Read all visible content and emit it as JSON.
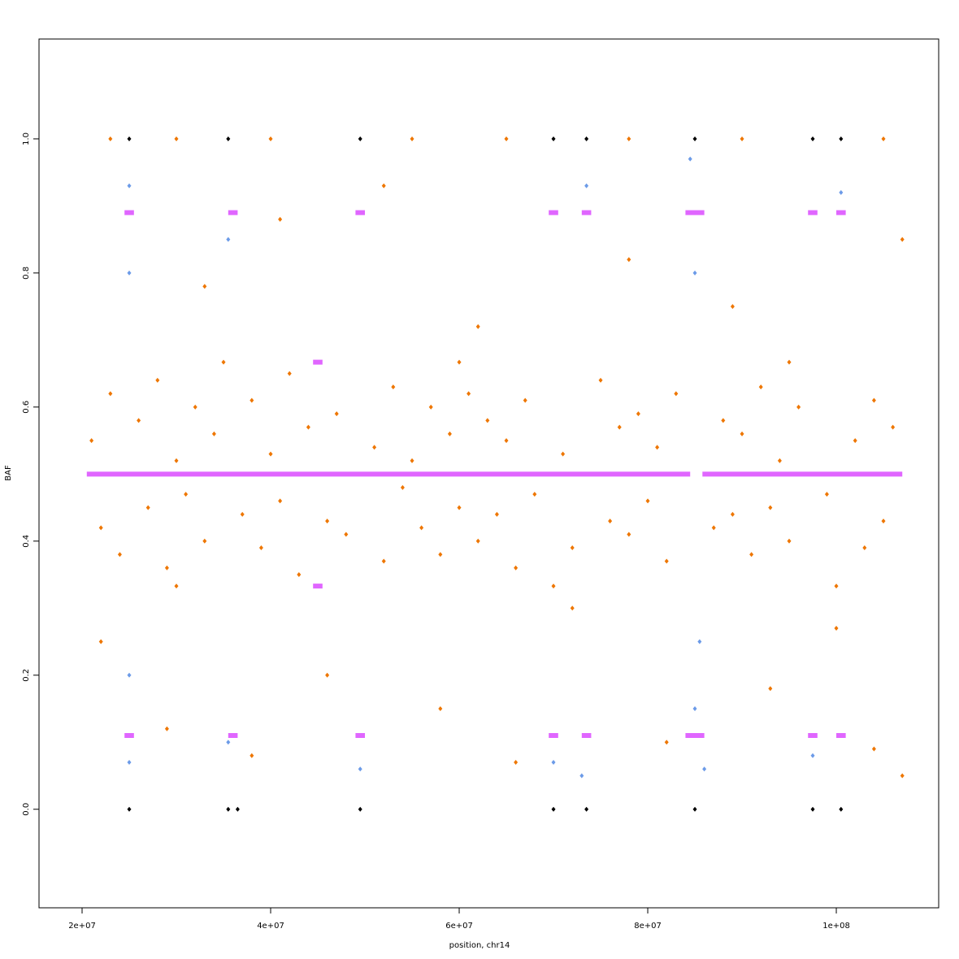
{
  "chart_data": {
    "type": "scatter",
    "xlabel": "position, chr14",
    "ylabel": "BAF",
    "xlim": [
      15430000,
      110860000
    ],
    "ylim": [
      -0.147,
      1.149
    ],
    "xticks": [
      {
        "value": 20000000,
        "label": "2e+07"
      },
      {
        "value": 40000000,
        "label": "4e+07"
      },
      {
        "value": 60000000,
        "label": "6e+07"
      },
      {
        "value": 80000000,
        "label": "8e+07"
      },
      {
        "value": 100000000,
        "label": "1e+08"
      }
    ],
    "yticks": [
      {
        "value": 0,
        "label": "0.0"
      },
      0.2,
      0.4,
      0.6,
      0.8,
      {
        "value": 1,
        "label": "1.0"
      }
    ],
    "series": [
      {
        "mode": "points",
        "color": "#ee7600",
        "x": [
          21000000.0,
          22000000.0,
          23000000.0,
          24000000.0,
          26000000.0,
          27000000.0,
          28000000.0,
          29000000.0,
          30000000.0,
          31000000.0,
          32000000.0,
          33000000.0,
          34000000.0,
          37000000.0,
          38000000.0,
          39000000.0,
          40000000.0,
          41000000.0,
          42000000.0,
          43000000.0,
          44000000.0,
          46000000.0,
          47000000.0,
          48000000.0,
          51000000.0,
          52000000.0,
          53000000.0,
          54000000.0,
          55000000.0,
          56000000.0,
          57000000.0,
          58000000.0,
          59000000.0,
          60000000.0,
          61000000.0,
          62000000.0,
          63000000.0,
          64000000.0,
          65000000.0,
          66000000.0,
          67000000.0,
          68000000.0,
          71000000.0,
          72000000.0,
          75000000.0,
          76000000.0,
          77000000.0,
          78000000.0,
          79000000.0,
          80000000.0,
          81000000.0,
          82000000.0,
          83000000.0,
          87000000.0,
          88000000.0,
          89000000.0,
          90000000.0,
          91000000.0,
          92000000.0,
          93000000.0,
          94000000.0,
          95000000.0,
          96000000.0,
          99000000.0,
          102000000.0,
          103000000.0,
          104000000.0,
          105000000.0,
          106000000.0,
          22000000.0,
          29000000.0,
          33000000.0,
          38000000.0,
          41000000.0,
          46000000.0,
          52000000.0,
          58000000.0,
          62000000.0,
          66000000.0,
          72000000.0,
          78000000.0,
          82000000.0,
          89000000.0,
          93000000.0,
          100000000.0,
          104000000.0,
          107000000.0,
          107000000.0,
          23000000.0,
          30000000.0,
          40000000.0,
          55000000.0,
          65000000.0,
          78000000.0,
          90000000.0,
          105000000.0,
          35000000.0,
          60000000.0,
          95000000.0,
          30000000.0,
          70000000.0,
          100000000.0
        ],
        "values": [
          0.55,
          0.42,
          0.62,
          0.38,
          0.58,
          0.45,
          0.64,
          0.36,
          0.52,
          0.47,
          0.6,
          0.4,
          0.56,
          0.44,
          0.61,
          0.39,
          0.53,
          0.46,
          0.65,
          0.35,
          0.57,
          0.43,
          0.59,
          0.41,
          0.54,
          0.37,
          0.63,
          0.48,
          0.52,
          0.42,
          0.6,
          0.38,
          0.56,
          0.45,
          0.62,
          0.4,
          0.58,
          0.44,
          0.55,
          0.36,
          0.61,
          0.47,
          0.53,
          0.39,
          0.64,
          0.43,
          0.57,
          0.41,
          0.59,
          0.46,
          0.54,
          0.37,
          0.62,
          0.42,
          0.58,
          0.44,
          0.56,
          0.38,
          0.63,
          0.45,
          0.52,
          0.4,
          0.6,
          0.47,
          0.55,
          0.39,
          0.61,
          0.43,
          0.57,
          0.25,
          0.12,
          0.78,
          0.08,
          0.88,
          0.2,
          0.93,
          0.15,
          0.72,
          0.07,
          0.3,
          0.82,
          0.1,
          0.75,
          0.18,
          0.27,
          0.09,
          0.05,
          0.85,
          1,
          1,
          1,
          1,
          1,
          1,
          1,
          1,
          0.667,
          0.667,
          0.667,
          0.333,
          0.333,
          0.333
        ]
      },
      {
        "mode": "points",
        "color": "#6c9be8",
        "x": [
          25000000.0,
          25000000.0,
          25000000.0,
          25000000.0,
          35500000.0,
          35500000.0,
          49500000.0,
          70000000.0,
          73500000.0,
          73000000.0,
          84500000.0,
          85000000.0,
          85500000.0,
          85000000.0,
          86000000.0,
          97500000.0,
          100500000.0
        ],
        "values": [
          0.93,
          0.8,
          0.2,
          0.07,
          0.85,
          0.1,
          0.06,
          0.07,
          0.93,
          0.05,
          0.97,
          0.8,
          0.25,
          0.15,
          0.06,
          0.08,
          0.92
        ]
      },
      {
        "mode": "points",
        "color": "#000000",
        "x": [
          25000000.0,
          35500000.0,
          36500000.0,
          49500000.0,
          70000000.0,
          73500000.0,
          85000000.0,
          97500000.0,
          100500000.0,
          25000000.0,
          35500000.0,
          49500000.0,
          70000000.0,
          73500000.0,
          85000000.0,
          97500000.0,
          100500000.0
        ],
        "values": [
          0,
          0,
          0,
          0,
          0,
          0,
          0,
          0,
          0,
          1,
          1,
          1,
          1,
          1,
          1,
          1,
          1
        ]
      },
      {
        "mode": "lines",
        "color": "#e066ff",
        "x": [
          20500000.0,
          84500000.0,
          null,
          85800000.0,
          107000000.0,
          null,
          24500000.0,
          25500000.0,
          null,
          35500000.0,
          36500000.0,
          null,
          49000000.0,
          50000000.0,
          null,
          69500000.0,
          70500000.0,
          null,
          73000000.0,
          74000000.0,
          null,
          84000000.0,
          86000000.0,
          null,
          97000000.0,
          98000000.0,
          null,
          100000000.0,
          101000000.0,
          null,
          24500000.0,
          25500000.0,
          null,
          35500000.0,
          36500000.0,
          null,
          49000000.0,
          50000000.0,
          null,
          69500000.0,
          70500000.0,
          null,
          73000000.0,
          74000000.0,
          null,
          84000000.0,
          86000000.0,
          null,
          97000000.0,
          98000000.0,
          null,
          100000000.0,
          101000000.0,
          null,
          44500000.0,
          45500000.0,
          null,
          44500000.0,
          45500000.0
        ],
        "values": [
          0.5,
          0.5,
          null,
          0.5,
          0.5,
          null,
          0.89,
          0.89,
          null,
          0.89,
          0.89,
          null,
          0.89,
          0.89,
          null,
          0.89,
          0.89,
          null,
          0.89,
          0.89,
          null,
          0.89,
          0.89,
          null,
          0.89,
          0.89,
          null,
          0.89,
          0.89,
          null,
          0.11,
          0.11,
          null,
          0.11,
          0.11,
          null,
          0.11,
          0.11,
          null,
          0.11,
          0.11,
          null,
          0.11,
          0.11,
          null,
          0.11,
          0.11,
          null,
          0.11,
          0.11,
          null,
          0.11,
          0.11,
          null,
          0.667,
          0.667,
          null,
          0.333,
          0.333
        ]
      }
    ]
  }
}
